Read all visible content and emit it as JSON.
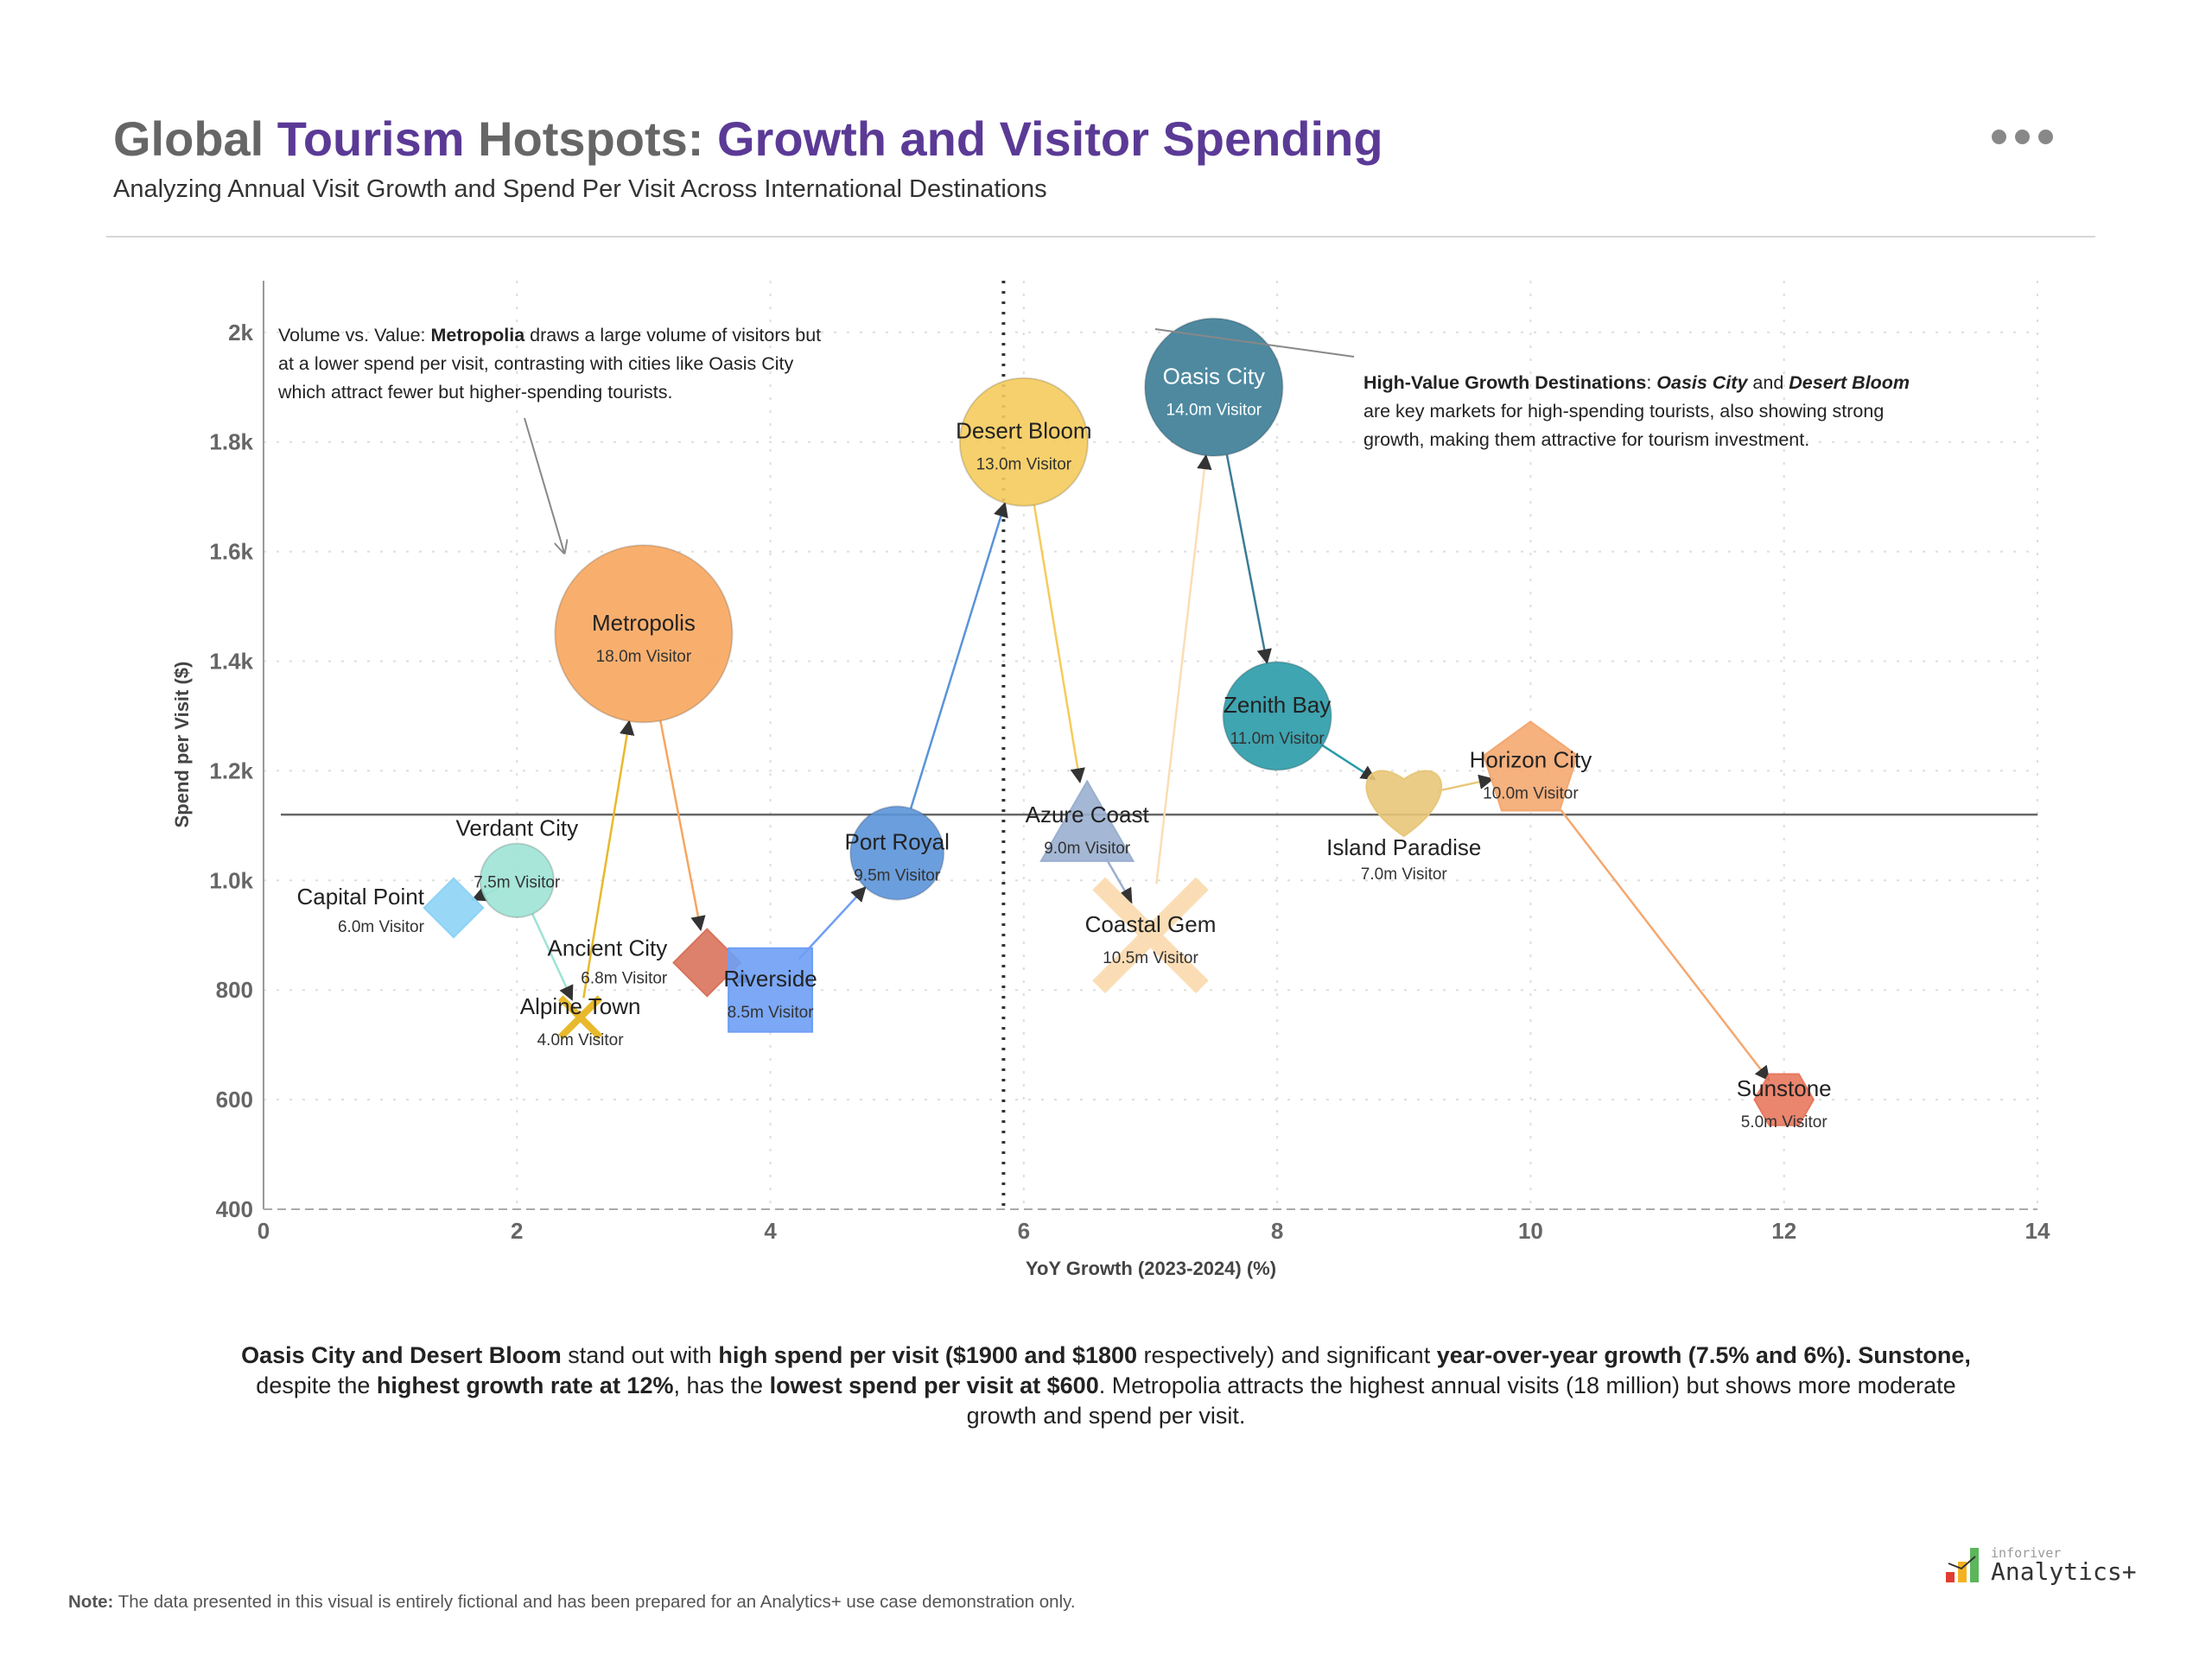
{
  "header": {
    "title_parts": [
      {
        "text": "Global ",
        "accent": false
      },
      {
        "text": "Tourism",
        "accent": true
      },
      {
        "text": " Hotspots: ",
        "accent": false
      },
      {
        "text": "Growth and Visitor Spending",
        "accent": true
      }
    ],
    "subtitle": "Analyzing Annual Visit Growth and Spend Per Visit Across International Destinations",
    "more_icon": "more-horizontal-icon"
  },
  "colors": {
    "accent": "#5B3A96",
    "title_gray": "#666666"
  },
  "chart_data": {
    "type": "scatter",
    "title": "Global Tourism Hotspots: Growth and Visitor Spending",
    "xlabel": "YoY Growth (2023-2024) (%)",
    "ylabel": "Spend per Visit ($)",
    "xlim": [
      0,
      14
    ],
    "ylim": [
      400,
      2100
    ],
    "xticks": [
      0,
      2,
      4,
      6,
      8,
      10,
      12,
      14
    ],
    "xtick_labels": [
      "0",
      "2",
      "4",
      "6",
      "8",
      "10",
      "12",
      "14"
    ],
    "yticks": [
      400,
      600,
      800,
      1000,
      1200,
      1400,
      1600,
      1800,
      2000
    ],
    "ytick_labels": [
      "400",
      "600",
      "800",
      "1.0k",
      "1.2k",
      "1.4k",
      "1.6k",
      "1.8k",
      "2k"
    ],
    "grid": true,
    "size_unit_label": "Visitor",
    "reference_lines": {
      "avg_growth": 5.84,
      "avg_spend": 1120
    },
    "points": [
      {
        "name": "Capital Point",
        "x": 1.5,
        "y": 950,
        "visitors": 6.0,
        "shape": "diamond",
        "color": "#8DD3F5"
      },
      {
        "name": "Verdant City",
        "x": 2,
        "y": 1000,
        "visitors": 7.5,
        "shape": "circle",
        "color": "#9DE3D5"
      },
      {
        "name": "Alpine Town",
        "x": 2.5,
        "y": 750,
        "visitors": 4.0,
        "shape": "x",
        "color": "#E8B92C"
      },
      {
        "name": "Metropolis",
        "x": 3,
        "y": 1450,
        "visitors": 18.0,
        "shape": "circle",
        "color": "#F7A65E"
      },
      {
        "name": "Ancient City",
        "x": 3.5,
        "y": 850,
        "visitors": 6.8,
        "shape": "diamond",
        "color": "#D9735C"
      },
      {
        "name": "Riverside",
        "x": 4,
        "y": 800,
        "visitors": 8.5,
        "shape": "square",
        "color": "#6E9EF5"
      },
      {
        "name": "Port Royal",
        "x": 5,
        "y": 1050,
        "visitors": 9.5,
        "shape": "circle",
        "color": "#5B93D8"
      },
      {
        "name": "Desert Bloom",
        "x": 6,
        "y": 1800,
        "visitors": 13.0,
        "shape": "circle",
        "color": "#F5CB5C"
      },
      {
        "name": "Azure Coast",
        "x": 6.5,
        "y": 1100,
        "visitors": 9.0,
        "shape": "triangle",
        "color": "#9AAFCF"
      },
      {
        "name": "Coastal Gem",
        "x": 7,
        "y": 900,
        "visitors": 10.5,
        "shape": "x",
        "color": "#FBDDB5"
      },
      {
        "name": "Oasis City",
        "x": 7.5,
        "y": 1900,
        "visitors": 14.0,
        "shape": "circle",
        "color": "#3B7C96"
      },
      {
        "name": "Zenith Bay",
        "x": 8,
        "y": 1300,
        "visitors": 11.0,
        "shape": "circle",
        "color": "#2A9BA8"
      },
      {
        "name": "Island Paradise",
        "x": 9,
        "y": 1150,
        "visitors": 7.0,
        "shape": "heart",
        "color": "#E8C77A"
      },
      {
        "name": "Horizon City",
        "x": 10,
        "y": 1200,
        "visitors": 10.0,
        "shape": "pentagon",
        "color": "#F4A870"
      },
      {
        "name": "Sunstone",
        "x": 12,
        "y": 600,
        "visitors": 5.0,
        "shape": "hexagon",
        "color": "#E8785E"
      }
    ],
    "connections": [
      [
        "Verdant City",
        "Capital Point"
      ],
      [
        "Verdant City",
        "Alpine Town"
      ],
      [
        "Alpine Town",
        "Metropolis"
      ],
      [
        "Metropolis",
        "Ancient City"
      ],
      [
        "Ancient City",
        "Riverside"
      ],
      [
        "Riverside",
        "Port Royal"
      ],
      [
        "Port Royal",
        "Desert Bloom"
      ],
      [
        "Desert Bloom",
        "Azure Coast"
      ],
      [
        "Azure Coast",
        "Coastal Gem"
      ],
      [
        "Coastal Gem",
        "Oasis City"
      ],
      [
        "Oasis City",
        "Zenith Bay"
      ],
      [
        "Zenith Bay",
        "Island Paradise"
      ],
      [
        "Island Paradise",
        "Horizon City"
      ],
      [
        "Horizon City",
        "Sunstone"
      ]
    ],
    "annotations": [
      {
        "segments": [
          {
            "text": "Volume vs. Value: ",
            "bold": false,
            "italic": false
          },
          {
            "text": "Metropolia",
            "bold": true,
            "italic": false
          },
          {
            "text": " draws a large volume of visitors but at a lower spend per visit, contrasting with cities like Oasis City which attract fewer but higher-spending tourists.",
            "bold": false,
            "italic": false
          }
        ]
      },
      {
        "segments": [
          {
            "text": "High-Value Growth Destinations",
            "bold": true,
            "italic": false
          },
          {
            "text": ": ",
            "bold": false,
            "italic": false
          },
          {
            "text": "Oasis City",
            "bold": true,
            "italic": true
          },
          {
            "text": " and ",
            "bold": false,
            "italic": false
          },
          {
            "text": "Desert Bloom",
            "bold": true,
            "italic": true
          },
          {
            "text": " are key markets for high-spending tourists, also showing strong growth, making them attractive for tourism investment.",
            "bold": false,
            "italic": false
          }
        ]
      }
    ]
  },
  "summary": [
    {
      "text": "Oasis City and Desert Bloom",
      "bold": true
    },
    {
      "text": " stand out with ",
      "bold": false
    },
    {
      "text": "high spend per visit ($1900 and $1800",
      "bold": true
    },
    {
      "text": " respectively) and significant ",
      "bold": false
    },
    {
      "text": "year-over-year growth (7.5% and 6%). Sunstone,",
      "bold": true
    },
    {
      "text": " despite the ",
      "bold": false
    },
    {
      "text": "highest growth rate at 12%",
      "bold": true
    },
    {
      "text": ", has the ",
      "bold": false
    },
    {
      "text": "lowest spend per visit at $600",
      "bold": true
    },
    {
      "text": ". Metropolia attracts the highest annual visits (18 million) but shows more moderate growth and spend per visit.",
      "bold": false
    }
  ],
  "footer": {
    "note_label": "Note:",
    "note_text": " The data presented in this visual is entirely fictional and has been prepared for an Analytics+ use case demonstration only.",
    "logo_small": "inforiver",
    "logo_big": "Analytics+"
  }
}
